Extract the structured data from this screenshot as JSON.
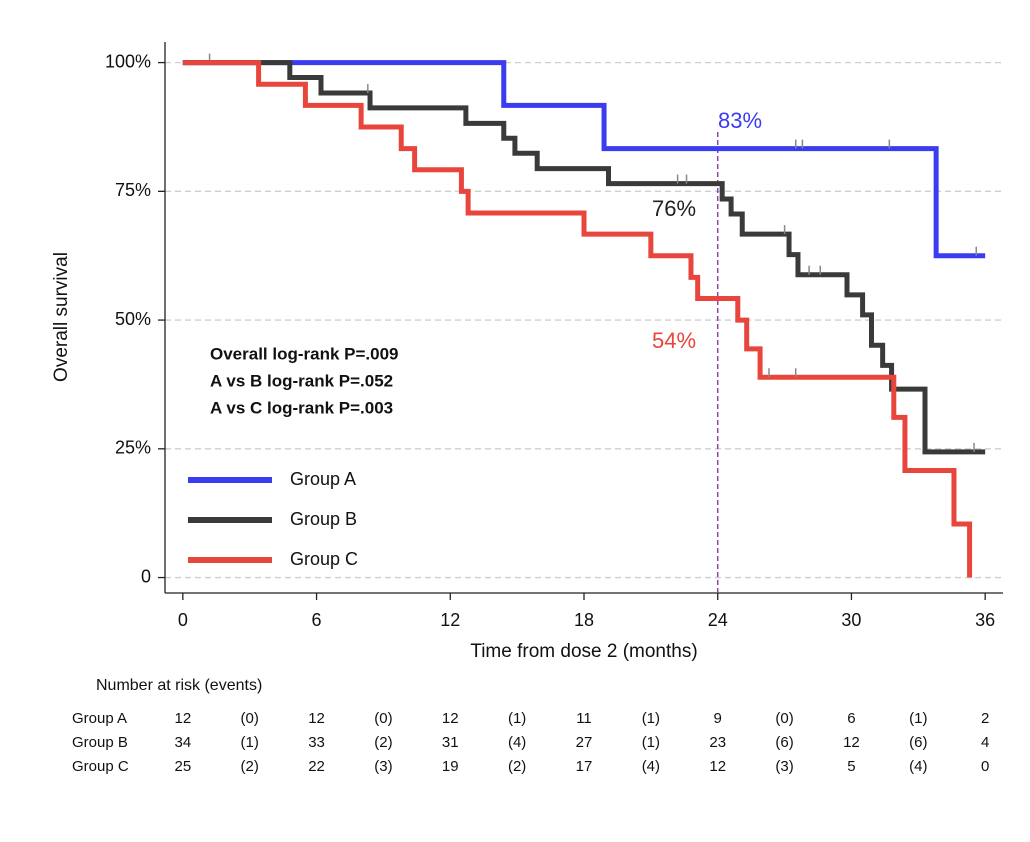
{
  "chart_data": {
    "type": "step",
    "y_label": "Overall survival",
    "x_label": "Time from dose 2 (months)",
    "xlim": [
      -0.8,
      36.8
    ],
    "ylim": [
      -3,
      104
    ],
    "xticks": [
      0,
      6,
      12,
      18,
      24,
      30,
      36
    ],
    "yticks": [
      0,
      {
        "value": 25,
        "label": "25%"
      },
      {
        "value": 50,
        "label": "50%"
      },
      {
        "value": 75,
        "label": "75%"
      },
      {
        "value": 100,
        "label": "100%"
      }
    ],
    "grid": true,
    "legend": "lower left",
    "reference_x": 24,
    "reference_color": "#8e44ad",
    "series": [
      {
        "name": "Group A",
        "color": "#3b3bef",
        "x": [
          0,
          14.4,
          18.9,
          33.8,
          36
        ],
        "values": [
          100,
          91.7,
          83.3,
          62.5,
          62.5
        ],
        "censored": [
          1.2,
          27.5,
          27.8,
          31.7,
          35.6
        ]
      },
      {
        "name": "Group B",
        "color": "#3a3a3a",
        "x": [
          0,
          4.8,
          6.2,
          8.4,
          12.7,
          14.4,
          14.9,
          15.9,
          19.1,
          24.2,
          24.6,
          25.1,
          27.2,
          27.6,
          29.8,
          30.5,
          30.9,
          31.4,
          31.8,
          33.3,
          36
        ],
        "values": [
          100,
          97.1,
          94.1,
          91.2,
          88.2,
          85.3,
          82.4,
          79.4,
          76.5,
          73.5,
          70.6,
          66.7,
          62.7,
          58.8,
          54.9,
          51.0,
          45.1,
          41.2,
          36.6,
          24.4,
          24.4
        ],
        "censored": [
          8.3,
          22.2,
          22.6,
          27.0,
          28.1,
          28.6,
          35.5
        ]
      },
      {
        "name": "Group C",
        "color": "#e8453c",
        "x": [
          0,
          3.4,
          5.5,
          8.0,
          9.8,
          10.4,
          12.5,
          12.8,
          18.0,
          21.0,
          22.8,
          23.1,
          24.9,
          25.3,
          25.9,
          31.9,
          32.4,
          34.6,
          35.3
        ],
        "values": [
          100,
          95.8,
          91.7,
          87.5,
          83.3,
          79.2,
          75,
          70.8,
          66.7,
          62.5,
          58.3,
          54.2,
          50,
          44.4,
          38.9,
          31.1,
          20.8,
          10.4,
          0
        ],
        "censored": [
          26.3,
          27.5
        ]
      }
    ],
    "annotations": [
      {
        "text": "83%",
        "color": "#3b3bef"
      },
      {
        "text": "76%",
        "color": "#222222"
      },
      {
        "text": "54%",
        "color": "#e8453c"
      }
    ],
    "notes": [
      "Overall log-rank P=.009",
      "A vs B log-rank P=.052",
      "A vs C log-rank P=.003"
    ]
  },
  "risk_table": {
    "title": "Number at risk (events)",
    "rows": [
      {
        "label": "Group A",
        "cells": [
          "12",
          "(0)",
          "12",
          "(0)",
          "12",
          "(1)",
          "11",
          "(1)",
          "9",
          "(0)",
          "6",
          "(1)",
          "2"
        ]
      },
      {
        "label": "Group B",
        "cells": [
          "34",
          "(1)",
          "33",
          "(2)",
          "31",
          "(4)",
          "27",
          "(1)",
          "23",
          "(6)",
          "12",
          "(6)",
          "4"
        ]
      },
      {
        "label": "Group C",
        "cells": [
          "25",
          "(2)",
          "22",
          "(3)",
          "19",
          "(2)",
          "17",
          "(4)",
          "12",
          "(3)",
          "5",
          "(4)",
          "0"
        ]
      }
    ]
  }
}
